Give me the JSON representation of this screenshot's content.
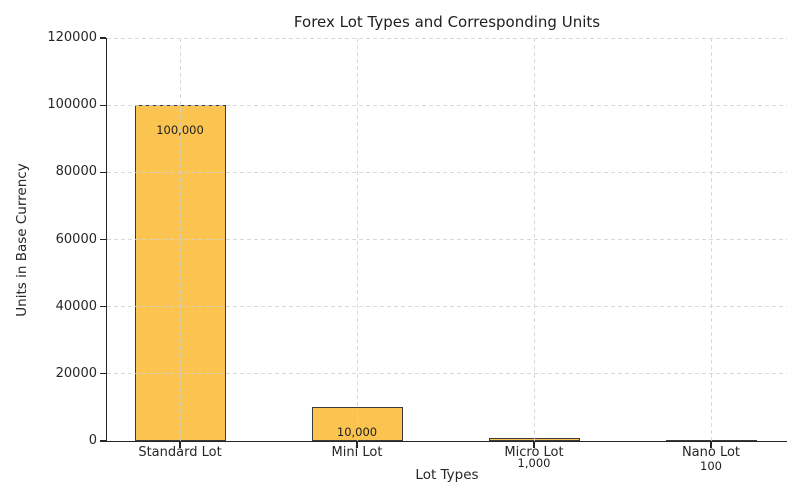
{
  "chart_data": {
    "type": "bar",
    "title": "Forex Lot Types and Corresponding Units",
    "xlabel": "Lot Types",
    "ylabel": "Units in Base Currency",
    "categories": [
      "Standard Lot",
      "Mini Lot",
      "Micro Lot",
      "Nano Lot"
    ],
    "values": [
      100000,
      10000,
      1000,
      100
    ],
    "bar_labels": [
      "100,000",
      "10,000",
      "1,000",
      "100"
    ],
    "ylim": [
      0,
      120000
    ],
    "yticks": [
      0,
      20000,
      40000,
      60000,
      80000,
      100000,
      120000
    ],
    "ytick_labels": [
      "0",
      "20000",
      "40000",
      "60000",
      "80000",
      "100000",
      "120000"
    ],
    "grid": "both-dashed",
    "legend": "none",
    "colors": {
      "bar_fill": "#FBC34F",
      "bar_edge": "#3A3A3A",
      "grid": "#D2D2D2",
      "text": "#262626",
      "spine": "#262626",
      "background": "#FFFFFF"
    }
  }
}
